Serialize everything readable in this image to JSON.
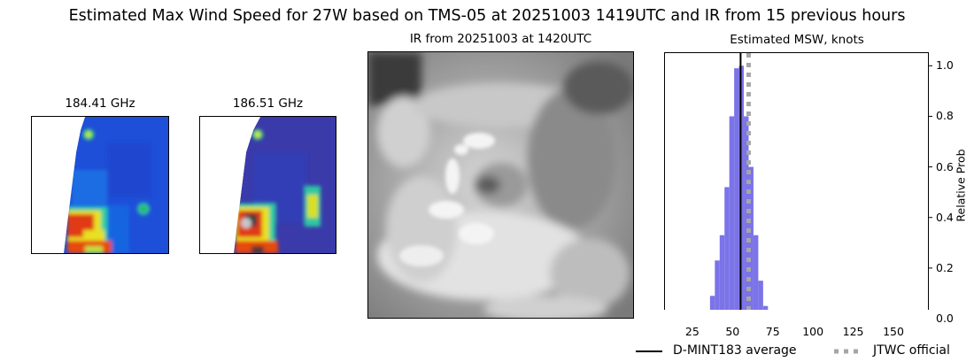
{
  "figure": {
    "suptitle": "Estimated Max Wind Speed for 27W based on TMS-05 at 20251003 1419UTC and IR from 15 previous hours"
  },
  "panels": {
    "mw1_title": "184.41 GHz",
    "mw2_title": "186.51 GHz",
    "ir_title": "IR from 20251003 at 1420UTC",
    "hist_title": "Estimated MSW, knots"
  },
  "colors": {
    "histogram_bar": "#7b73e8",
    "average_line": "#000000",
    "official_line": "#a6a6a6"
  },
  "chart_data": {
    "type": "bar",
    "title": "Estimated MSW, knots",
    "xlabel": "",
    "ylabel": "Relative Prob",
    "xlim": [
      8,
      172
    ],
    "ylim": [
      0,
      1.05
    ],
    "xticks": [
      25,
      50,
      75,
      100,
      125,
      150
    ],
    "yticks": [
      0.0,
      0.2,
      0.4,
      0.6,
      0.8,
      1.0
    ],
    "ytick_labels": [
      "0.0",
      "0.2",
      "0.4",
      "0.6",
      "0.8",
      "1.0"
    ],
    "yaxis_side": "right",
    "bin_width": 3,
    "bins_start": [
      15,
      18,
      21,
      24,
      27,
      30,
      33,
      36,
      39,
      42,
      45,
      48,
      51,
      54,
      57,
      60,
      63,
      66,
      69,
      72,
      75,
      78,
      81,
      84,
      87,
      90,
      93,
      96,
      99,
      102,
      105,
      108,
      111,
      114,
      117,
      120,
      123,
      126,
      129,
      132,
      135,
      138,
      141,
      144,
      147,
      150,
      153,
      156,
      159,
      162,
      165
    ],
    "values": [
      0.005,
      0.005,
      0.005,
      0.005,
      0.005,
      0.005,
      0.005,
      0.09,
      0.23,
      0.33,
      0.52,
      0.8,
      0.99,
      1.0,
      0.8,
      0.6,
      0.33,
      0.15,
      0.05,
      0.005,
      0.005,
      0.003,
      0.003,
      0.003,
      0.003,
      0.003,
      0.003,
      0.003,
      0.003,
      0.003,
      0.003,
      0.003,
      0.003,
      0.003,
      0.003,
      0.003,
      0.003,
      0.003,
      0.003,
      0.003,
      0.003,
      0.003,
      0.003,
      0.003,
      0.003,
      0.003,
      0.003,
      0.003,
      0.003,
      0.003,
      0.003
    ],
    "average": 55,
    "official": 60,
    "legend": [
      "D-MINT183 average",
      "JTWC official"
    ],
    "legend_placement": "bottom-right"
  }
}
